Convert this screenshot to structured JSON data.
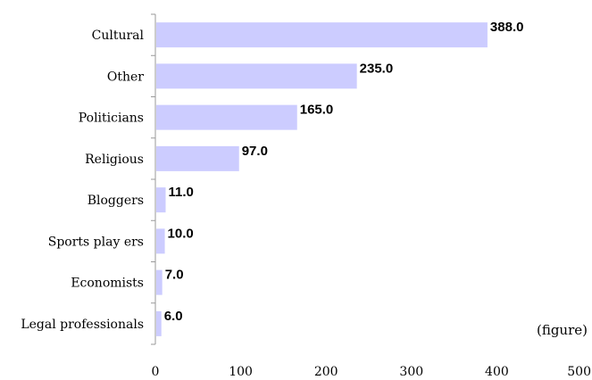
{
  "chart_data": {
    "type": "bar",
    "orientation": "horizontal",
    "categories": [
      "Cultural",
      "Other",
      "Politicians",
      "Religious",
      "Bloggers",
      "Sports play ers",
      "Economists",
      "Legal professionals"
    ],
    "values": [
      388.0,
      235.0,
      165.0,
      97.0,
      11.0,
      10.0,
      7.0,
      6.0
    ],
    "value_labels": [
      "388.0",
      "235.0",
      "165.0",
      "97.0",
      "11.0",
      "10.0",
      "7.0",
      "6.0"
    ],
    "x_ticks": [
      0,
      100,
      200,
      300,
      400,
      500
    ],
    "xlim": [
      0,
      500
    ],
    "unit_note": "(figure)",
    "bar_color": "#ccccff",
    "grid": false,
    "legend": "none"
  }
}
